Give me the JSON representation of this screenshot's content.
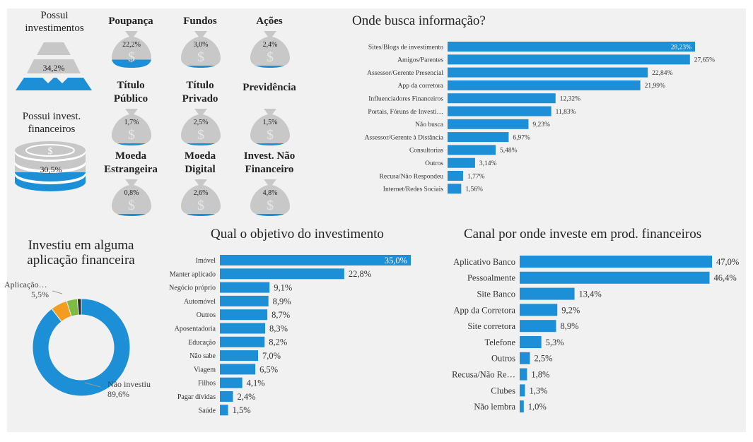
{
  "colors": {
    "accent": "#1c8fd6",
    "bag": "#c8c8c8",
    "pyramid_gray": "#c7c7c7",
    "orange": "#f39c1f",
    "green": "#7dbb42",
    "dark": "#2b2b2b",
    "panel": "#f1f1f1"
  },
  "kpis": {
    "possui_investimentos": {
      "label": "Possui investimentos",
      "value": "34,2%",
      "fraction": 0.342
    },
    "possui_financeiros": {
      "label": "Possui invest. financeiros",
      "value": "30,5%",
      "fraction": 0.305
    }
  },
  "bags": [
    {
      "label": "Poupança",
      "value": "22,2%",
      "fraction": 0.222
    },
    {
      "label": "Fundos",
      "value": "3,0%",
      "fraction": 0.03
    },
    {
      "label": "Ações",
      "value": "2,4%",
      "fraction": 0.024
    },
    {
      "label": "Título Público",
      "value": "1,7%",
      "fraction": 0.017
    },
    {
      "label": "Título Privado",
      "value": "2,5%",
      "fraction": 0.025
    },
    {
      "label": "Previdência",
      "value": "1,5%",
      "fraction": 0.015
    },
    {
      "label": "Moeda Estrangeira",
      "value": "0,8%",
      "fraction": 0.008
    },
    {
      "label": "Moeda Digital",
      "value": "2,6%",
      "fraction": 0.026
    },
    {
      "label": "Invest. Não Financeiro",
      "value": "4,8%",
      "fraction": 0.048
    }
  ],
  "chart_data": [
    {
      "type": "bar",
      "orientation": "horizontal",
      "title": "Onde busca informação?",
      "categories": [
        "Sites/Blogs de investimento",
        "Amigos/Parentes",
        "Assessor/Gerente Presencial",
        "App da corretora",
        "Influenciadores Financeiros",
        "Portais, Fóruns de Investi…",
        "Não busca",
        "Assessor/Gerente à Distância",
        "Consultorias",
        "Outros",
        "Recusa/Não Respondeu",
        "Internet/Redes Sociais"
      ],
      "values": [
        28.23,
        27.65,
        22.84,
        21.99,
        12.32,
        11.83,
        9.23,
        6.97,
        5.48,
        3.14,
        1.77,
        1.56
      ],
      "labels": [
        "28,23%",
        "27,65%",
        "22,84%",
        "21,99%",
        "12,32%",
        "11,83%",
        "9,23%",
        "6,97%",
        "5,48%",
        "3,14%",
        "1,77%",
        "1,56%"
      ]
    },
    {
      "type": "pie",
      "title": "Investiu em alguma aplicação financeira",
      "categories": [
        "Não investiu",
        "Aplicação…",
        "",
        ""
      ],
      "values": [
        89.6,
        5.5,
        3.6,
        1.3
      ],
      "labels": [
        "89,6%",
        "5,5%",
        "",
        ""
      ]
    },
    {
      "type": "bar",
      "orientation": "horizontal",
      "title": "Qual o objetivo do investimento",
      "categories": [
        "Imóvel",
        "Manter aplicado",
        "Negócio próprio",
        "Automóvel",
        "Outros",
        "Aposentadoria",
        "Educação",
        "Não sabe",
        "Viagem",
        "Filhos",
        "Pagar dívidas",
        "Saúde"
      ],
      "values": [
        35.0,
        22.8,
        9.1,
        8.9,
        8.7,
        8.3,
        8.2,
        7.0,
        6.5,
        4.1,
        2.4,
        1.5
      ],
      "labels": [
        "35,0%",
        "22,8%",
        "9,1%",
        "8,9%",
        "8,7%",
        "8,3%",
        "8,2%",
        "7,0%",
        "6,5%",
        "4,1%",
        "2,4%",
        "1,5%"
      ]
    },
    {
      "type": "bar",
      "orientation": "horizontal",
      "title": "Canal por onde investe em prod. financeiros",
      "categories": [
        "Aplicativo Banco",
        "Pessoalmente",
        "Site Banco",
        "App da Corretora",
        "Site corretora",
        "Telefone",
        "Outros",
        "Recusa/Não Re…",
        "Clubes",
        "Não lembra"
      ],
      "values": [
        47.0,
        46.4,
        13.4,
        9.2,
        8.9,
        5.3,
        2.5,
        1.8,
        1.3,
        1.0
      ],
      "labels": [
        "47,0%",
        "46,4%",
        "13,4%",
        "9,2%",
        "8,9%",
        "5,3%",
        "2,5%",
        "1,8%",
        "1,3%",
        "1,0%"
      ]
    }
  ]
}
